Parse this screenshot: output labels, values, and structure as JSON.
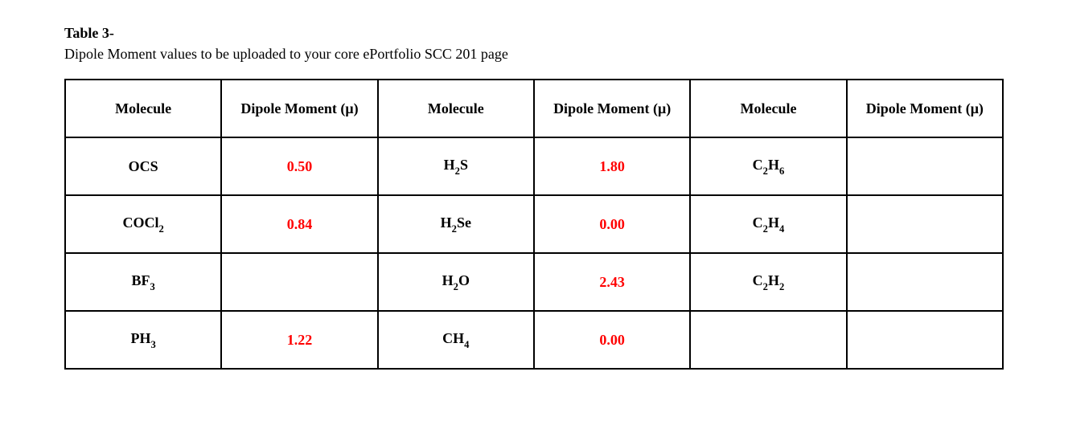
{
  "caption": {
    "label": "Table 3-",
    "text": "Dipole Moment values to be uploaded to your core ePortfolio SCC 201 page"
  },
  "table": {
    "headers": {
      "molecule": "Molecule",
      "dipole": "Dipole Moment (μ)"
    },
    "rows": [
      {
        "m1": "OCS",
        "v1": "0.50",
        "m2": "H2S",
        "v2": "1.80",
        "m3": "C2H6",
        "v3": ""
      },
      {
        "m1": "COCl2",
        "v1": "0.84",
        "m2": "H2Se",
        "v2": "0.00",
        "m3": "C2H4",
        "v3": ""
      },
      {
        "m1": "BF3",
        "v1": "",
        "m2": "H2O",
        "v2": "2.43",
        "m3": "C2H2",
        "v3": ""
      },
      {
        "m1": "PH3",
        "v1": "1.22",
        "m2": "CH4",
        "v2": "0.00",
        "m3": "",
        "v3": ""
      }
    ],
    "colors": {
      "value_text": "#ff0000",
      "border": "#000000",
      "text": "#000000",
      "background": "#ffffff"
    }
  }
}
